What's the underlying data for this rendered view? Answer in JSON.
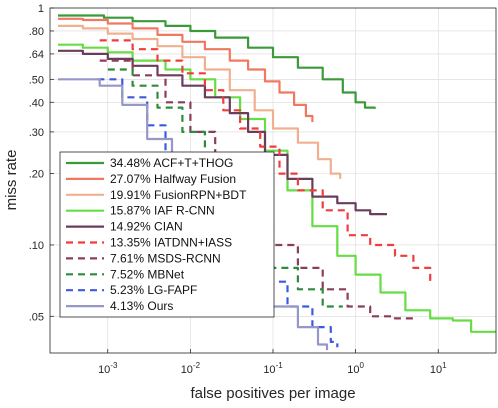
{
  "chart_data": {
    "type": "line",
    "xlabel": "false positives per image",
    "ylabel": "miss rate",
    "x_scale": "log",
    "y_scale": "log",
    "xlim": [
      0.0002,
      50
    ],
    "ylim": [
      0.035,
      1
    ],
    "grid": true,
    "legend_position": "lower-left",
    "x_ticks": [
      {
        "value": 0.001,
        "base": "10",
        "exp": "-3"
      },
      {
        "value": 0.01,
        "base": "10",
        "exp": "-2"
      },
      {
        "value": 0.1,
        "base": "10",
        "exp": "-1"
      },
      {
        "value": 1,
        "base": "10",
        "exp": "0"
      },
      {
        "value": 10,
        "base": "10",
        "exp": "1"
      }
    ],
    "y_ticks": [
      {
        "value": 1,
        "label": "1"
      },
      {
        "value": 0.8,
        "label": ".80"
      },
      {
        "value": 0.64,
        "label": ".64"
      },
      {
        "value": 0.5,
        "label": ".50"
      },
      {
        "value": 0.4,
        "label": ".40"
      },
      {
        "value": 0.3,
        "label": ".30"
      },
      {
        "value": 0.2,
        "label": ".20"
      },
      {
        "value": 0.1,
        "label": ".10"
      },
      {
        "value": 0.05,
        "label": ".05"
      }
    ],
    "series": [
      {
        "name": "34.48% ACF+T+THOG",
        "color": "#3a9a3a",
        "dash": "solid",
        "points": [
          [
            0.00025,
            0.93
          ],
          [
            0.0005,
            0.93
          ],
          [
            0.0009,
            0.91
          ],
          [
            0.002,
            0.88
          ],
          [
            0.005,
            0.84
          ],
          [
            0.01,
            0.8
          ],
          [
            0.02,
            0.75
          ],
          [
            0.05,
            0.68
          ],
          [
            0.1,
            0.62
          ],
          [
            0.2,
            0.56
          ],
          [
            0.4,
            0.5
          ],
          [
            0.7,
            0.44
          ],
          [
            1,
            0.4
          ],
          [
            1.3,
            0.38
          ],
          [
            1.7,
            0.375
          ]
        ]
      },
      {
        "name": "27.07% Halfway Fusion",
        "color": "#f07860",
        "dash": "solid",
        "points": [
          [
            0.00025,
            0.9
          ],
          [
            0.0005,
            0.89
          ],
          [
            0.001,
            0.86
          ],
          [
            0.002,
            0.82
          ],
          [
            0.004,
            0.77
          ],
          [
            0.008,
            0.72
          ],
          [
            0.015,
            0.67
          ],
          [
            0.03,
            0.6
          ],
          [
            0.05,
            0.55
          ],
          [
            0.08,
            0.49
          ],
          [
            0.12,
            0.44
          ],
          [
            0.18,
            0.39
          ],
          [
            0.25,
            0.35
          ],
          [
            0.3,
            0.33
          ]
        ]
      },
      {
        "name": "19.91% FusionRPN+BDT",
        "color": "#f0b090",
        "dash": "solid",
        "points": [
          [
            0.00025,
            0.84
          ],
          [
            0.0005,
            0.82
          ],
          [
            0.001,
            0.78
          ],
          [
            0.002,
            0.74
          ],
          [
            0.004,
            0.69
          ],
          [
            0.008,
            0.62
          ],
          [
            0.015,
            0.55
          ],
          [
            0.03,
            0.45
          ],
          [
            0.06,
            0.37
          ],
          [
            0.1,
            0.31
          ],
          [
            0.2,
            0.27
          ],
          [
            0.35,
            0.23
          ],
          [
            0.5,
            0.2
          ],
          [
            0.65,
            0.19
          ]
        ]
      },
      {
        "name": "15.87% IAF R-CNN",
        "color": "#66dd44",
        "dash": "solid",
        "points": [
          [
            0.00025,
            0.7
          ],
          [
            0.0005,
            0.68
          ],
          [
            0.001,
            0.65
          ],
          [
            0.002,
            0.6
          ],
          [
            0.005,
            0.55
          ],
          [
            0.01,
            0.5
          ],
          [
            0.02,
            0.42
          ],
          [
            0.04,
            0.34
          ],
          [
            0.08,
            0.25
          ],
          [
            0.15,
            0.17
          ],
          [
            0.3,
            0.12
          ],
          [
            0.6,
            0.09
          ],
          [
            1,
            0.075
          ],
          [
            2,
            0.063
          ],
          [
            4,
            0.053
          ],
          [
            8,
            0.049
          ],
          [
            15,
            0.048
          ],
          [
            25,
            0.043
          ],
          [
            50,
            0.043
          ]
        ]
      },
      {
        "name": "14.92% CIAN",
        "color": "#6b3d5c",
        "dash": "solid",
        "points": [
          [
            0.00025,
            0.66
          ],
          [
            0.0005,
            0.64
          ],
          [
            0.001,
            0.61
          ],
          [
            0.002,
            0.57
          ],
          [
            0.004,
            0.52
          ],
          [
            0.008,
            0.47
          ],
          [
            0.015,
            0.42
          ],
          [
            0.03,
            0.36
          ],
          [
            0.05,
            0.3
          ],
          [
            0.08,
            0.24
          ],
          [
            0.15,
            0.19
          ],
          [
            0.3,
            0.16
          ],
          [
            0.6,
            0.15
          ],
          [
            1,
            0.14
          ],
          [
            1.5,
            0.135
          ],
          [
            2.4,
            0.135
          ]
        ]
      },
      {
        "name": "13.35% IATDNN+IASS",
        "color": "#f03c3c",
        "dash": "dashed",
        "points": [
          [
            0.0008,
            0.73
          ],
          [
            0.002,
            0.67
          ],
          [
            0.004,
            0.6
          ],
          [
            0.008,
            0.53
          ],
          [
            0.015,
            0.45
          ],
          [
            0.025,
            0.37
          ],
          [
            0.04,
            0.31
          ],
          [
            0.07,
            0.26
          ],
          [
            0.12,
            0.2
          ],
          [
            0.2,
            0.17
          ],
          [
            0.4,
            0.14
          ],
          [
            0.8,
            0.11
          ],
          [
            1.5,
            0.1
          ],
          [
            3,
            0.09
          ],
          [
            5,
            0.08
          ],
          [
            8,
            0.07
          ]
        ]
      },
      {
        "name": "7.61% MSDS-RCNN",
        "color": "#8c3c5c",
        "dash": "dashed",
        "points": [
          [
            0.0008,
            0.6
          ],
          [
            0.002,
            0.52
          ],
          [
            0.005,
            0.4
          ],
          [
            0.01,
            0.3
          ],
          [
            0.02,
            0.22
          ],
          [
            0.05,
            0.14
          ],
          [
            0.1,
            0.1
          ],
          [
            0.2,
            0.08
          ],
          [
            0.4,
            0.065
          ],
          [
            0.8,
            0.055
          ],
          [
            1.5,
            0.05
          ],
          [
            3,
            0.049
          ],
          [
            5,
            0.049
          ]
        ]
      },
      {
        "name": "7.52% MBNet",
        "color": "#2d8c3c",
        "dash": "dashed",
        "points": [
          [
            0.001,
            0.55
          ],
          [
            0.002,
            0.47
          ],
          [
            0.004,
            0.38
          ],
          [
            0.008,
            0.3
          ],
          [
            0.015,
            0.22
          ],
          [
            0.03,
            0.16
          ],
          [
            0.06,
            0.11
          ],
          [
            0.1,
            0.08
          ],
          [
            0.2,
            0.065
          ],
          [
            0.4,
            0.055
          ],
          [
            0.7,
            0.055
          ]
        ]
      },
      {
        "name": "5.23% LG-FAPF",
        "color": "#3c5ae0",
        "dash": "dashed",
        "points": [
          [
            0.00075,
            0.5
          ],
          [
            0.0015,
            0.42
          ],
          [
            0.003,
            0.32
          ],
          [
            0.005,
            0.22
          ],
          [
            0.01,
            0.16
          ],
          [
            0.02,
            0.12
          ],
          [
            0.04,
            0.09
          ],
          [
            0.08,
            0.07
          ],
          [
            0.15,
            0.055
          ],
          [
            0.3,
            0.045
          ],
          [
            0.5,
            0.039
          ],
          [
            0.6,
            0.037
          ]
        ]
      },
      {
        "name": "4.13% Ours",
        "color": "#9696c8",
        "dash": "solid",
        "points": [
          [
            0.00025,
            0.5
          ],
          [
            0.0008,
            0.47
          ],
          [
            0.0015,
            0.39
          ],
          [
            0.003,
            0.28
          ],
          [
            0.006,
            0.19
          ],
          [
            0.012,
            0.13
          ],
          [
            0.025,
            0.09
          ],
          [
            0.05,
            0.07
          ],
          [
            0.1,
            0.055
          ],
          [
            0.2,
            0.045
          ],
          [
            0.35,
            0.038
          ],
          [
            0.45,
            0.036
          ]
        ]
      }
    ]
  }
}
